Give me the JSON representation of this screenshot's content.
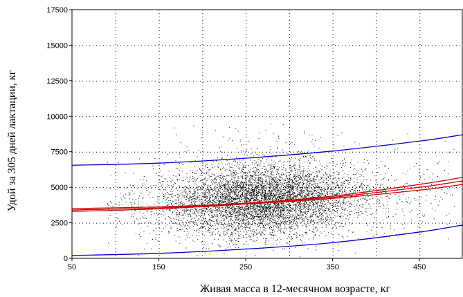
{
  "chart_data": {
    "type": "scatter",
    "title": "",
    "xlabel": "Живая масса в 12-месячном возрасте, кг",
    "ylabel": "Удой за 305 дней лактации, кг",
    "xlim": [
      50,
      500
    ],
    "ylim": [
      0,
      17500
    ],
    "x_ticks": [
      50,
      150,
      250,
      350,
      450
    ],
    "y_ticks": [
      0,
      2500,
      5000,
      7500,
      10000,
      12500,
      15000,
      17500
    ],
    "grid": "dotted",
    "legend": "none",
    "colors": {
      "points": "#000000",
      "regression": "#cc0000",
      "prediction_band": "#0000cc",
      "grid": "#000000"
    },
    "scatter_description_note_excluded": true,
    "scatter_generation": {
      "point_count": 6500,
      "x_center": 270,
      "x_spread": 55,
      "y_center": 4100,
      "y_spread": 1250
    },
    "series": [
      {
        "role": "regression-fit",
        "color": "#cc0000",
        "x": [
          50,
          150,
          250,
          350,
          450,
          500
        ],
        "y": [
          3400,
          3550,
          3850,
          4300,
          5000,
          5450
        ]
      },
      {
        "role": "regression-ci-upper",
        "color": "#cc0000",
        "x": [
          50,
          150,
          250,
          350,
          450,
          500
        ],
        "y": [
          3500,
          3620,
          3880,
          4380,
          5200,
          5700
        ]
      },
      {
        "role": "regression-ci-lower",
        "color": "#cc0000",
        "x": [
          50,
          150,
          250,
          350,
          450,
          500
        ],
        "y": [
          3300,
          3480,
          3820,
          4220,
          4800,
          5200
        ]
      },
      {
        "role": "prediction-upper",
        "color": "#0000cc",
        "x": [
          50,
          150,
          250,
          350,
          450,
          500
        ],
        "y": [
          6550,
          6700,
          7050,
          7550,
          8250,
          8700
        ]
      },
      {
        "role": "prediction-lower",
        "color": "#0000cc",
        "x": [
          50,
          150,
          250,
          350,
          450,
          500
        ],
        "y": [
          200,
          350,
          650,
          1100,
          1850,
          2350
        ]
      }
    ]
  }
}
